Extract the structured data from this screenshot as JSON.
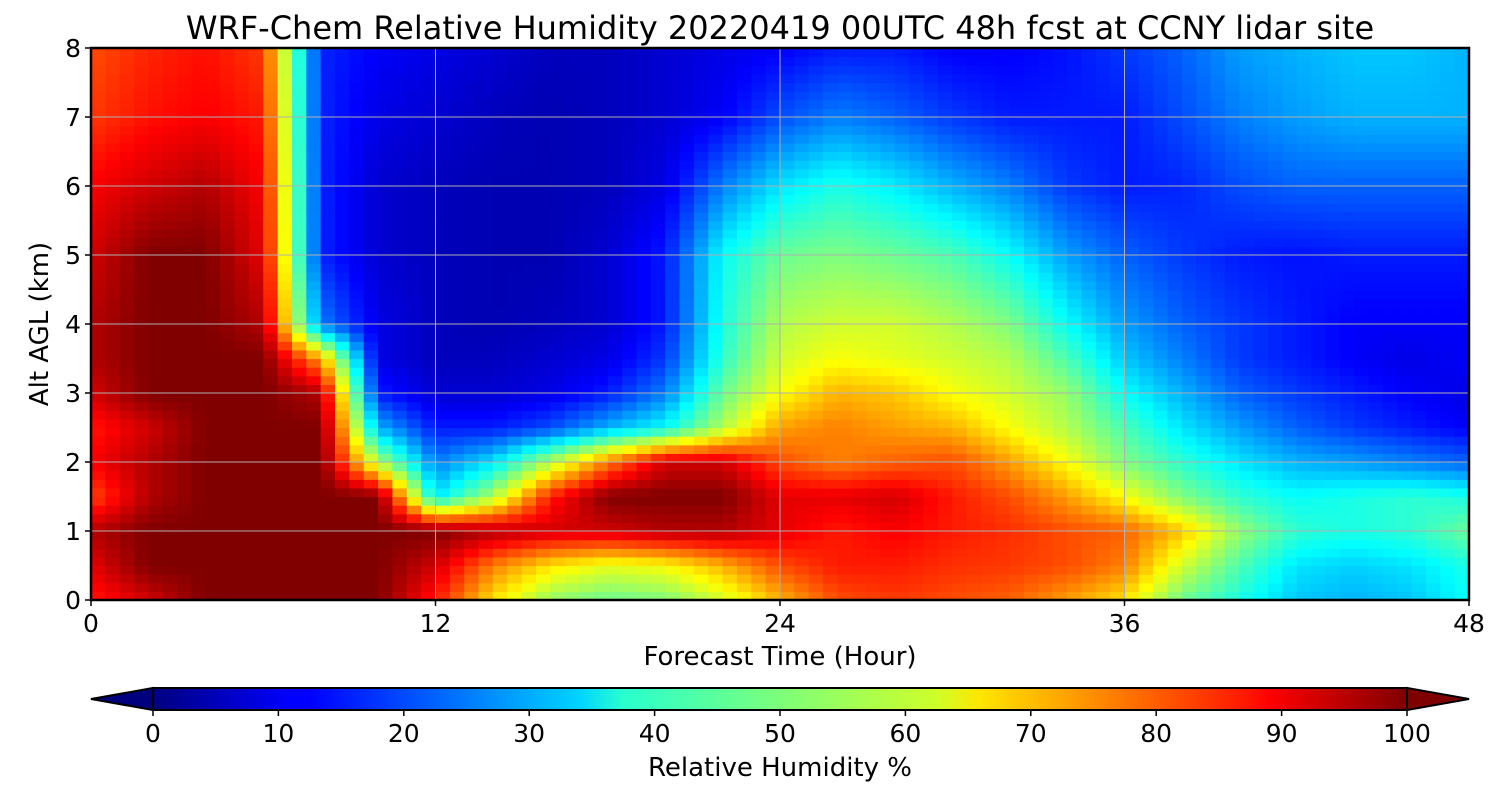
{
  "chart_data": {
    "type": "heatmap",
    "title": "WRF-Chem Relative Humidity 20220419 00UTC 48h fcst at CCNY lidar site",
    "xlabel": "Forecast Time (Hour)",
    "ylabel": "Alt AGL (km)",
    "xlim": [
      0,
      48
    ],
    "ylim": [
      0,
      8
    ],
    "x_ticks": [
      0,
      12,
      24,
      36,
      48
    ],
    "y_ticks": [
      0,
      1,
      2,
      3,
      4,
      5,
      6,
      7,
      8
    ],
    "grid": true,
    "colormap": "jet",
    "colorbar": {
      "label": "Relative Humidity %",
      "min": 0,
      "max": 100,
      "ticks": [
        0,
        10,
        20,
        30,
        40,
        50,
        60,
        70,
        80,
        90,
        100
      ],
      "extend": "both",
      "orientation": "horizontal",
      "placement": "bottom"
    },
    "x": [
      0,
      2,
      4,
      6,
      8,
      10,
      12,
      14,
      16,
      18,
      20,
      22,
      24,
      26,
      28,
      30,
      32,
      34,
      36,
      38,
      40,
      42,
      44,
      46,
      48
    ],
    "y": [
      0,
      0.5,
      1,
      1.5,
      2,
      2.5,
      3,
      3.5,
      4,
      5,
      6,
      7,
      8
    ],
    "z": [
      [
        85,
        92,
        100,
        100,
        100,
        100,
        85,
        65,
        52,
        48,
        50,
        58,
        70,
        80,
        82,
        80,
        78,
        72,
        65,
        48,
        40,
        32,
        30,
        32,
        38
      ],
      [
        90,
        100,
        100,
        100,
        100,
        100,
        92,
        75,
        65,
        60,
        62,
        70,
        80,
        85,
        85,
        83,
        82,
        80,
        75,
        58,
        45,
        35,
        33,
        35,
        40
      ],
      [
        95,
        100,
        100,
        100,
        100,
        100,
        100,
        95,
        92,
        92,
        95,
        95,
        90,
        85,
        88,
        85,
        83,
        80,
        78,
        68,
        52,
        42,
        40,
        42,
        48
      ],
      [
        80,
        95,
        100,
        100,
        100,
        100,
        35,
        55,
        85,
        100,
        100,
        100,
        90,
        90,
        92,
        85,
        80,
        72,
        62,
        50,
        42,
        38,
        40,
        42,
        40
      ],
      [
        88,
        95,
        100,
        100,
        100,
        55,
        25,
        35,
        55,
        75,
        92,
        92,
        80,
        75,
        78,
        80,
        72,
        62,
        50,
        42,
        35,
        30,
        28,
        25,
        22
      ],
      [
        85,
        92,
        100,
        100,
        100,
        30,
        15,
        15,
        20,
        30,
        38,
        55,
        72,
        75,
        72,
        70,
        62,
        55,
        45,
        35,
        28,
        22,
        18,
        15,
        12
      ],
      [
        92,
        100,
        100,
        100,
        95,
        15,
        8,
        8,
        10,
        15,
        25,
        48,
        62,
        70,
        68,
        62,
        58,
        52,
        38,
        30,
        22,
        18,
        15,
        12,
        10
      ],
      [
        95,
        100,
        100,
        100,
        72,
        10,
        6,
        6,
        8,
        10,
        18,
        42,
        58,
        62,
        60,
        58,
        55,
        45,
        32,
        25,
        18,
        15,
        12,
        10,
        12
      ],
      [
        95,
        100,
        100,
        95,
        25,
        10,
        6,
        5,
        6,
        8,
        15,
        40,
        55,
        58,
        58,
        55,
        50,
        38,
        28,
        22,
        18,
        15,
        12,
        12,
        12
      ],
      [
        92,
        100,
        100,
        90,
        16,
        8,
        6,
        5,
        5,
        8,
        15,
        38,
        48,
        50,
        48,
        45,
        38,
        28,
        22,
        18,
        15,
        14,
        15,
        15,
        15
      ],
      [
        88,
        92,
        95,
        88,
        16,
        8,
        6,
        5,
        5,
        6,
        10,
        25,
        35,
        40,
        36,
        30,
        25,
        18,
        15,
        16,
        20,
        22,
        22,
        22,
        22
      ],
      [
        82,
        86,
        88,
        85,
        16,
        10,
        8,
        6,
        5,
        6,
        8,
        12,
        20,
        25,
        22,
        18,
        15,
        15,
        15,
        20,
        25,
        28,
        30,
        30,
        30
      ],
      [
        80,
        84,
        86,
        82,
        16,
        12,
        10,
        8,
        6,
        6,
        8,
        10,
        12,
        15,
        15,
        12,
        12,
        14,
        18,
        22,
        28,
        30,
        32,
        32,
        30
      ]
    ]
  }
}
